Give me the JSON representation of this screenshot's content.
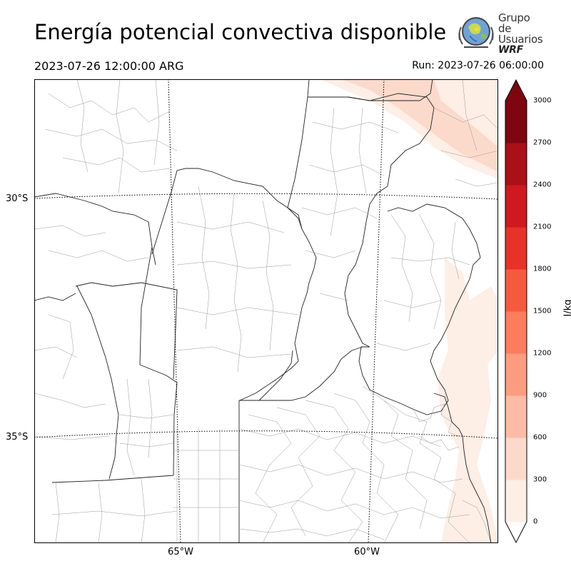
{
  "title": "Energía potencial convectiva disponible",
  "valid_time": "2023-07-26 12:00:00 ARG",
  "run": "Run: 2023-07-26 06:00:00",
  "logo": {
    "line1": "Grupo de",
    "line2": "Usuarios",
    "line3": "WRF"
  },
  "map": {
    "lat_labels": [
      "30°S",
      "35°S"
    ],
    "lon_labels": [
      "65°W",
      "60°W"
    ],
    "field": "CAPE"
  },
  "colorbar": {
    "label": "J/kg",
    "ticks": [
      "0",
      "300",
      "600",
      "900",
      "1200",
      "1500",
      "1800",
      "2100",
      "2400",
      "2700",
      "3000"
    ],
    "colors": [
      "#fdeee6",
      "#fcdacb",
      "#fcbca5",
      "#fc9d80",
      "#fb7d5d",
      "#f65a3e",
      "#e63228",
      "#ce1a1e",
      "#ab1016",
      "#7d0610"
    ],
    "extend": "both"
  },
  "colors": {
    "cape_low": "#fdeee6",
    "cape_mid": "#fcdacb"
  }
}
